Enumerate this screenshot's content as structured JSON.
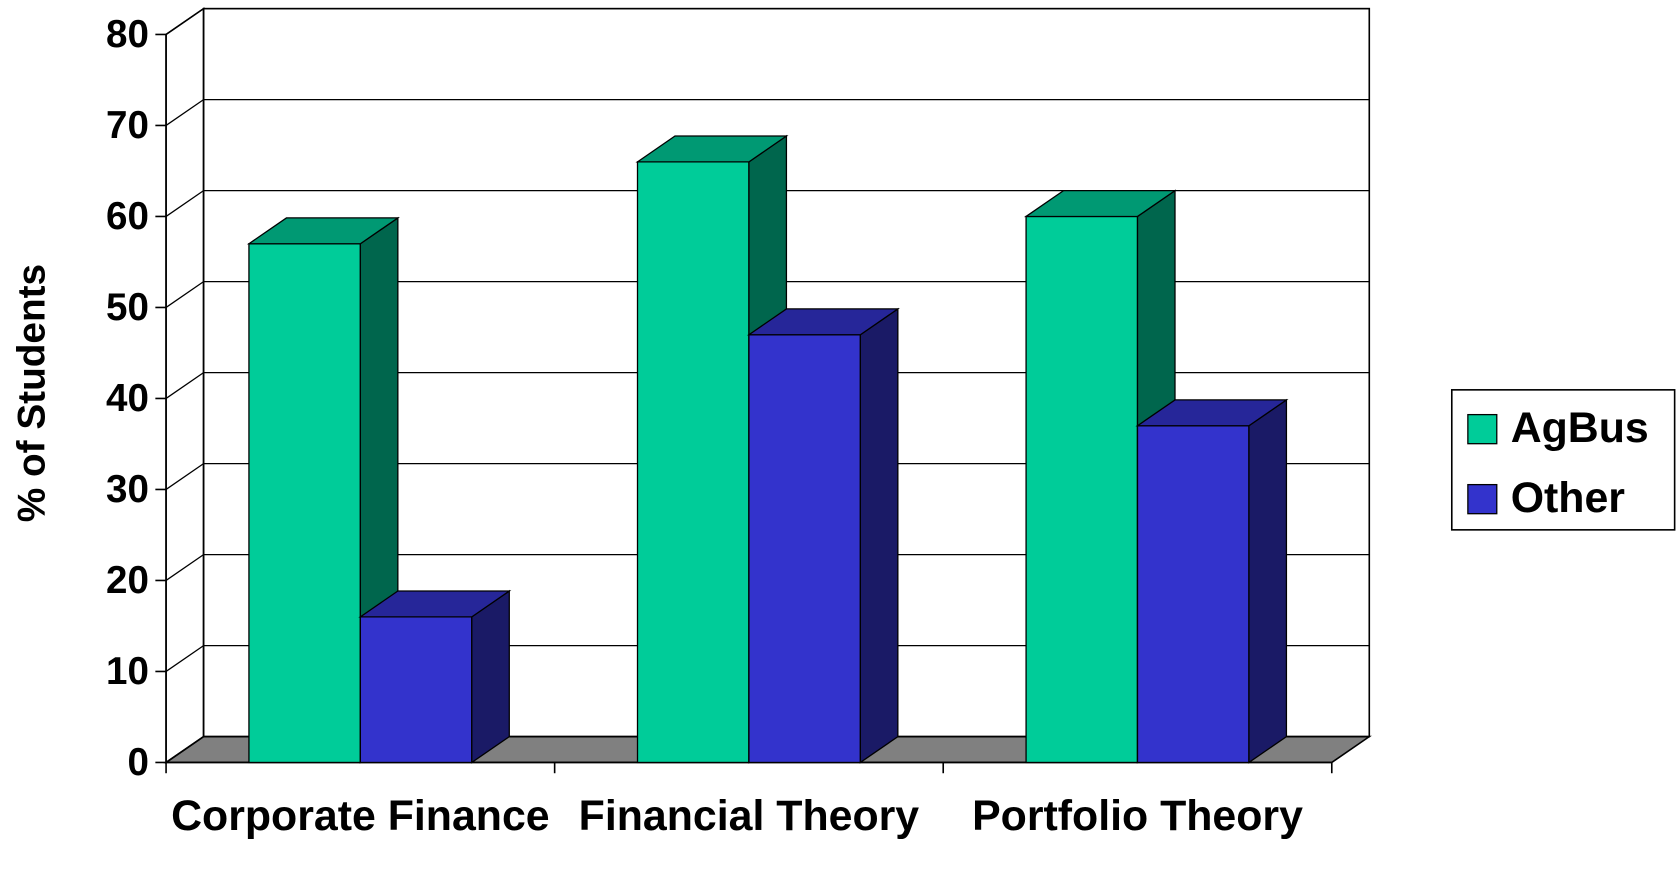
{
  "chart_data": {
    "type": "bar3d",
    "y_label": "% of Students",
    "categories": [
      "Corporate Finance",
      "Financial Theory",
      "Portfolio Theory"
    ],
    "series": [
      {
        "name": "AgBus",
        "color": "#00cc99",
        "values": [
          57,
          66,
          60
        ]
      },
      {
        "name": "Other",
        "color": "#3333cc",
        "values": [
          16,
          47,
          37
        ]
      }
    ],
    "ylim": [
      0,
      80
    ],
    "yticks": [
      0,
      10,
      20,
      30,
      40,
      50,
      60,
      70,
      80
    ],
    "grid": true,
    "legend": "right"
  }
}
